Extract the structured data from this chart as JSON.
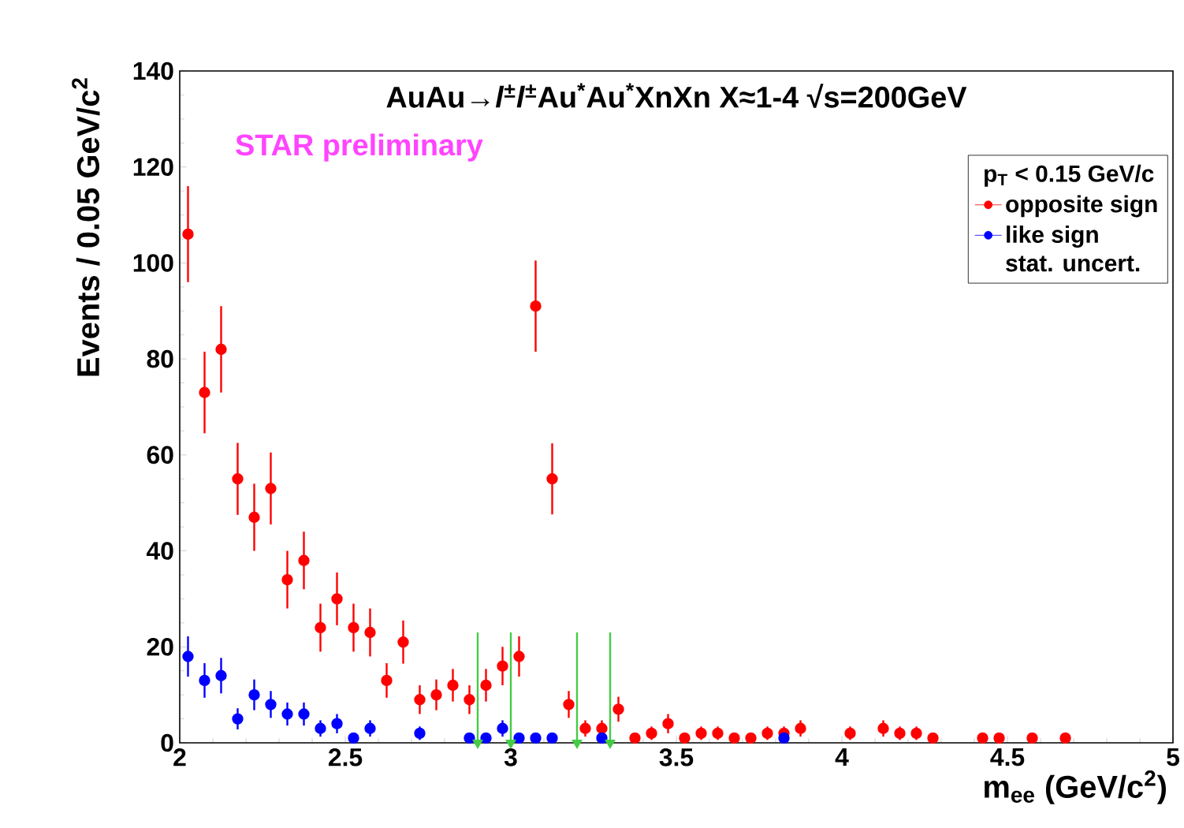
{
  "chart_data": {
    "type": "scatter",
    "title": "AuAu→*l*$^{±}$*l*$^{±}$Au$^{*}$Au$^{*}$XnXn  X≈1-4   √s=200GeV",
    "xlabel": "m$_{ee}$ (GeV/c$^{2}$)",
    "ylabel": "Events / 0.05 GeV/c$^{2}$",
    "legend_title": "p$_{T}$ < 0.15 GeV/c",
    "annotations": [
      "STAR preliminary",
      "stat. uncert."
    ],
    "xlim": [
      2,
      5
    ],
    "ylim": [
      0,
      140
    ],
    "xticks": [
      2,
      2.5,
      3,
      3.5,
      4,
      4.5,
      5
    ],
    "yticks": [
      0,
      20,
      40,
      60,
      80,
      100,
      120,
      140
    ],
    "grid": false,
    "legend": "top right",
    "series": [
      {
        "name": "opposite sign",
        "color": "#ff0000",
        "x": [
          2.025,
          2.075,
          2.125,
          2.175,
          2.225,
          2.275,
          2.325,
          2.375,
          2.425,
          2.475,
          2.525,
          2.575,
          2.625,
          2.675,
          2.725,
          2.775,
          2.825,
          2.875,
          2.925,
          2.975,
          3.025,
          3.075,
          3.125,
          3.175,
          3.225,
          3.275,
          3.325,
          3.375,
          3.425,
          3.475,
          3.525,
          3.575,
          3.625,
          3.675,
          3.725,
          3.775,
          3.825,
          3.875,
          4.025,
          4.125,
          4.175,
          4.225,
          4.275,
          4.425,
          4.475,
          4.575,
          4.675
        ],
        "values": [
          106,
          73,
          82,
          55,
          47,
          53,
          34,
          38,
          24,
          30,
          24,
          23,
          13,
          21,
          9,
          10,
          12,
          9,
          12,
          16,
          18,
          91,
          55,
          8,
          3,
          3,
          7,
          1,
          2,
          4,
          1,
          2,
          2,
          1,
          1,
          2,
          2,
          3,
          2,
          3,
          2,
          2,
          1,
          1,
          1,
          1,
          1
        ],
        "errors": [
          10,
          8.5,
          9,
          7.5,
          7,
          7.5,
          6,
          6,
          5,
          5.5,
          5,
          5,
          3.6,
          4.5,
          3,
          3.2,
          3.4,
          3,
          3.4,
          4,
          4.2,
          9.5,
          7.4,
          2.8,
          1.7,
          1.7,
          2.6,
          1,
          1.4,
          2,
          1,
          1.4,
          1.4,
          1,
          1,
          1.4,
          1.4,
          1.7,
          1.4,
          1.7,
          1.4,
          1.4,
          1,
          1,
          1,
          1,
          1
        ]
      },
      {
        "name": "like sign",
        "color": "#0000ff",
        "x": [
          2.025,
          2.075,
          2.125,
          2.175,
          2.225,
          2.275,
          2.325,
          2.375,
          2.425,
          2.475,
          2.525,
          2.575,
          2.725,
          2.875,
          2.925,
          2.975,
          3.025,
          3.075,
          3.125,
          3.275,
          3.825
        ],
        "values": [
          18,
          13,
          14,
          5,
          10,
          8,
          6,
          6,
          3,
          4,
          1,
          3,
          2,
          1,
          1,
          3,
          1,
          1,
          1,
          1,
          1
        ],
        "errors": [
          4.2,
          3.6,
          3.7,
          2.2,
          3.2,
          2.8,
          2.4,
          2.4,
          1.7,
          2,
          1,
          1.7,
          1.4,
          1,
          1,
          1.7,
          1,
          1,
          1,
          1,
          1
        ]
      },
      {
        "color": "#44cc44",
        "marker": "triangle",
        "x": [
          2.9,
          3.0,
          3.2,
          3.3
        ],
        "values": [
          0,
          0,
          0,
          0
        ],
        "errors": [
          [
            0,
            23
          ],
          [
            0,
            23
          ],
          [
            0,
            23
          ],
          [
            0,
            23
          ]
        ]
      }
    ]
  }
}
